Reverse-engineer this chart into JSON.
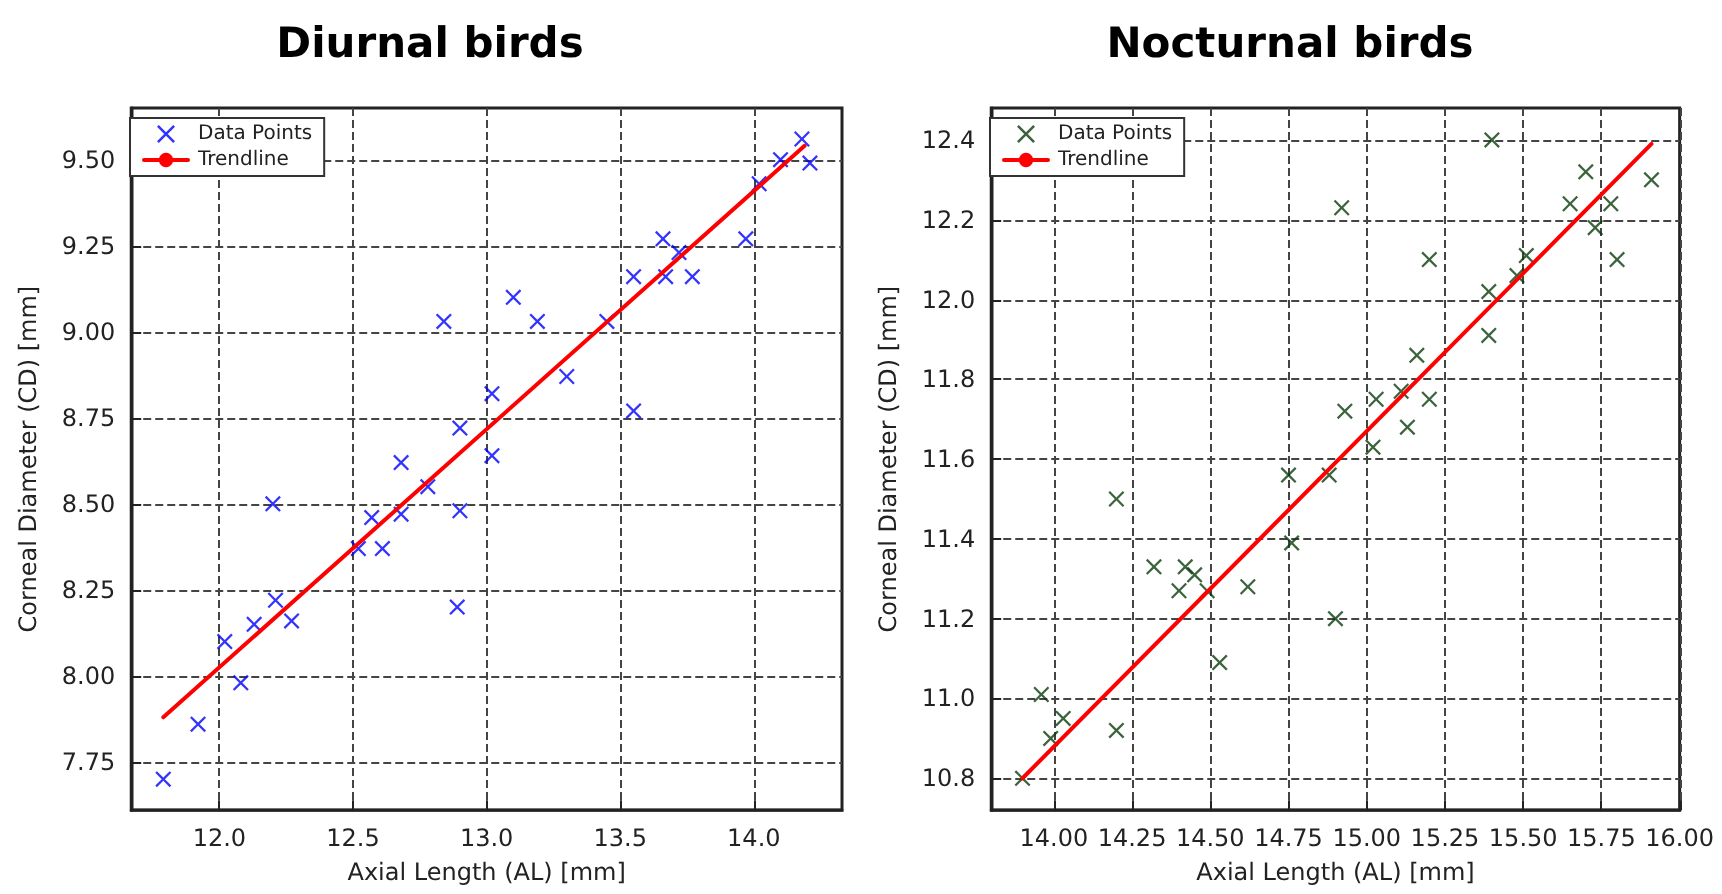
{
  "chart_data": [
    {
      "type": "scatter",
      "title": "Diurnal birds",
      "xlabel": "Axial Length (AL) [mm]",
      "ylabel": "Corneal Diameter (CD) [mm]",
      "xlim": [
        11.67,
        14.33
      ],
      "ylim": [
        7.61,
        9.65
      ],
      "xticks": [
        {
          "value": 12,
          "label": "12.0"
        },
        {
          "value": 12.5,
          "label": "12.5"
        },
        {
          "value": 13,
          "label": "13.0"
        },
        {
          "value": 13.5,
          "label": "13.5"
        },
        {
          "value": 14,
          "label": "14.0"
        }
      ],
      "yticks": [
        7.75,
        {
          "value": 8,
          "label": "8.00"
        },
        8.25,
        {
          "value": 8.5,
          "label": "8.50"
        },
        8.75,
        {
          "value": 9,
          "label": "9.00"
        },
        9.25,
        {
          "value": 9.5,
          "label": "9.50"
        }
      ],
      "grid": true,
      "legend": "top left",
      "marker": "cross",
      "series": [
        {
          "name": "Data Points",
          "color": "#0000ff",
          "x": [
            11.79,
            11.92,
            12.02,
            12.08,
            12.13,
            12.2,
            12.21,
            12.27,
            12.52,
            12.57,
            12.61,
            12.68,
            12.68,
            12.78,
            12.89,
            12.9,
            12.9,
            13.02,
            13.02,
            12.84,
            13.1,
            13.19,
            13.3,
            13.45,
            13.55,
            13.55,
            13.66,
            13.67,
            13.72,
            13.77,
            13.97,
            14.02,
            14.1,
            14.18,
            14.21
          ],
          "values": [
            7.7,
            7.86,
            8.1,
            7.98,
            8.15,
            8.5,
            8.22,
            8.16,
            8.37,
            8.46,
            8.37,
            8.47,
            8.62,
            8.55,
            8.2,
            8.48,
            8.72,
            8.82,
            8.64,
            9.03,
            9.1,
            9.03,
            8.87,
            9.03,
            9.16,
            8.77,
            9.27,
            9.16,
            9.23,
            9.16,
            9.27,
            9.43,
            9.5,
            9.56,
            9.49
          ]
        },
        {
          "name": "Trendline",
          "type": "line",
          "color": "#ff0000",
          "marker": "none",
          "x": [
            11.79,
            14.19
          ],
          "values": [
            7.88,
            9.54
          ]
        }
      ]
    },
    {
      "type": "scatter",
      "title": "Nocturnal birds",
      "xlabel": "Axial Length (AL) [mm]",
      "ylabel": "Corneal Diameter (CD) [mm]",
      "xlim": [
        13.8,
        16.0
      ],
      "ylim": [
        10.72,
        12.48
      ],
      "xticks": [
        {
          "value": 14,
          "label": "14.00"
        },
        14.25,
        {
          "value": 14.5,
          "label": "14.50"
        },
        14.75,
        {
          "value": 15,
          "label": "15.00"
        },
        15.25,
        {
          "value": 15.5,
          "label": "15.50"
        },
        15.75,
        {
          "value": 16,
          "label": "16.00"
        }
      ],
      "yticks": [
        10.8,
        {
          "value": 11,
          "label": "11.0"
        },
        11.2,
        11.4,
        11.6,
        11.8,
        {
          "value": 12,
          "label": "12.0"
        },
        12.2,
        12.4
      ],
      "grid": true,
      "legend": "top left",
      "marker": "cross",
      "series": [
        {
          "name": "Data Points",
          "color": "#0b3d0b",
          "x": [
            13.9,
            13.96,
            13.99,
            14.03,
            14.2,
            14.2,
            14.32,
            14.4,
            14.42,
            14.45,
            14.49,
            14.53,
            14.62,
            14.75,
            14.76,
            14.88,
            14.9,
            15.02,
            14.93,
            15.03,
            15.11,
            15.13,
            15.16,
            15.2,
            15.2,
            14.92,
            15.39,
            15.39,
            15.4,
            15.48,
            15.51,
            15.65,
            15.7,
            15.73,
            15.78,
            15.8,
            15.91
          ],
          "values": [
            10.8,
            11.01,
            10.9,
            10.95,
            10.92,
            11.5,
            11.33,
            11.27,
            11.33,
            11.31,
            11.27,
            11.09,
            11.28,
            11.56,
            11.39,
            11.56,
            11.2,
            11.63,
            11.72,
            11.75,
            11.77,
            11.68,
            11.86,
            11.75,
            12.1,
            12.23,
            12.02,
            11.91,
            12.4,
            12.06,
            12.11,
            12.24,
            12.32,
            12.18,
            12.24,
            12.1,
            12.3
          ]
        },
        {
          "name": "Trendline",
          "type": "line",
          "color": "#ff0000",
          "marker": "none",
          "x": [
            13.9,
            15.91
          ],
          "values": [
            10.8,
            12.39
          ]
        }
      ]
    }
  ]
}
